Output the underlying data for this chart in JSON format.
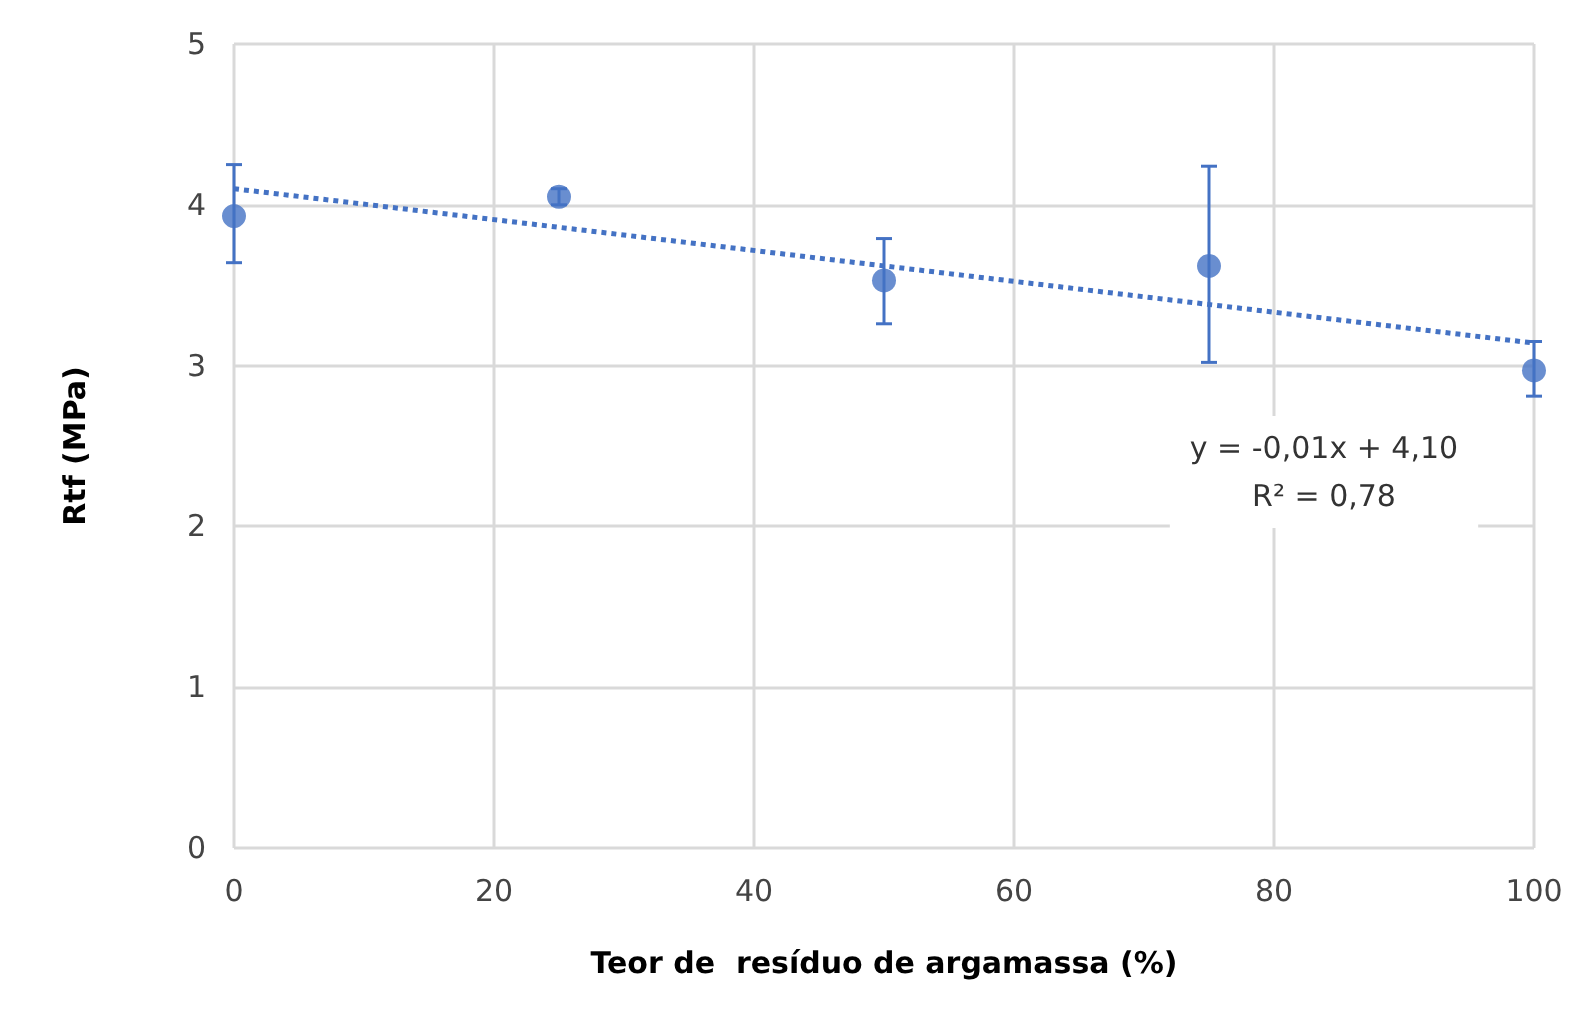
{
  "chart_data": {
    "type": "scatter",
    "xlabel": "Teor de  resíduo de argamassa (%)",
    "ylabel": "Rtf (MPa)",
    "xlim": [
      0,
      100
    ],
    "xticks": [
      0,
      20,
      40,
      60,
      80,
      100
    ],
    "ylim": [
      0,
      5
    ],
    "yticks": [
      0,
      1,
      2,
      3,
      4,
      5
    ],
    "grid": true,
    "series": [
      {
        "type": "scatter",
        "color": "#4472c4",
        "marker": "circle",
        "x": [
          0,
          25,
          50,
          75,
          100
        ],
        "values": [
          3.93,
          4.05,
          3.53,
          3.62,
          2.97
        ],
        "errors": [
          [
            3.64,
            4.25
          ],
          [
            4.0,
            4.1
          ],
          [
            3.26,
            3.79
          ],
          [
            3.02,
            4.24
          ],
          [
            2.81,
            3.15
          ]
        ]
      },
      {
        "type": "line",
        "color": "#4472c4",
        "marker": "none",
        "line_style": "dotted",
        "x": [
          0,
          100
        ],
        "values": [
          4.1,
          3.14
        ]
      }
    ],
    "annotations": [
      "y = -0,01x + 4,10",
      "R² = 0,78"
    ]
  }
}
